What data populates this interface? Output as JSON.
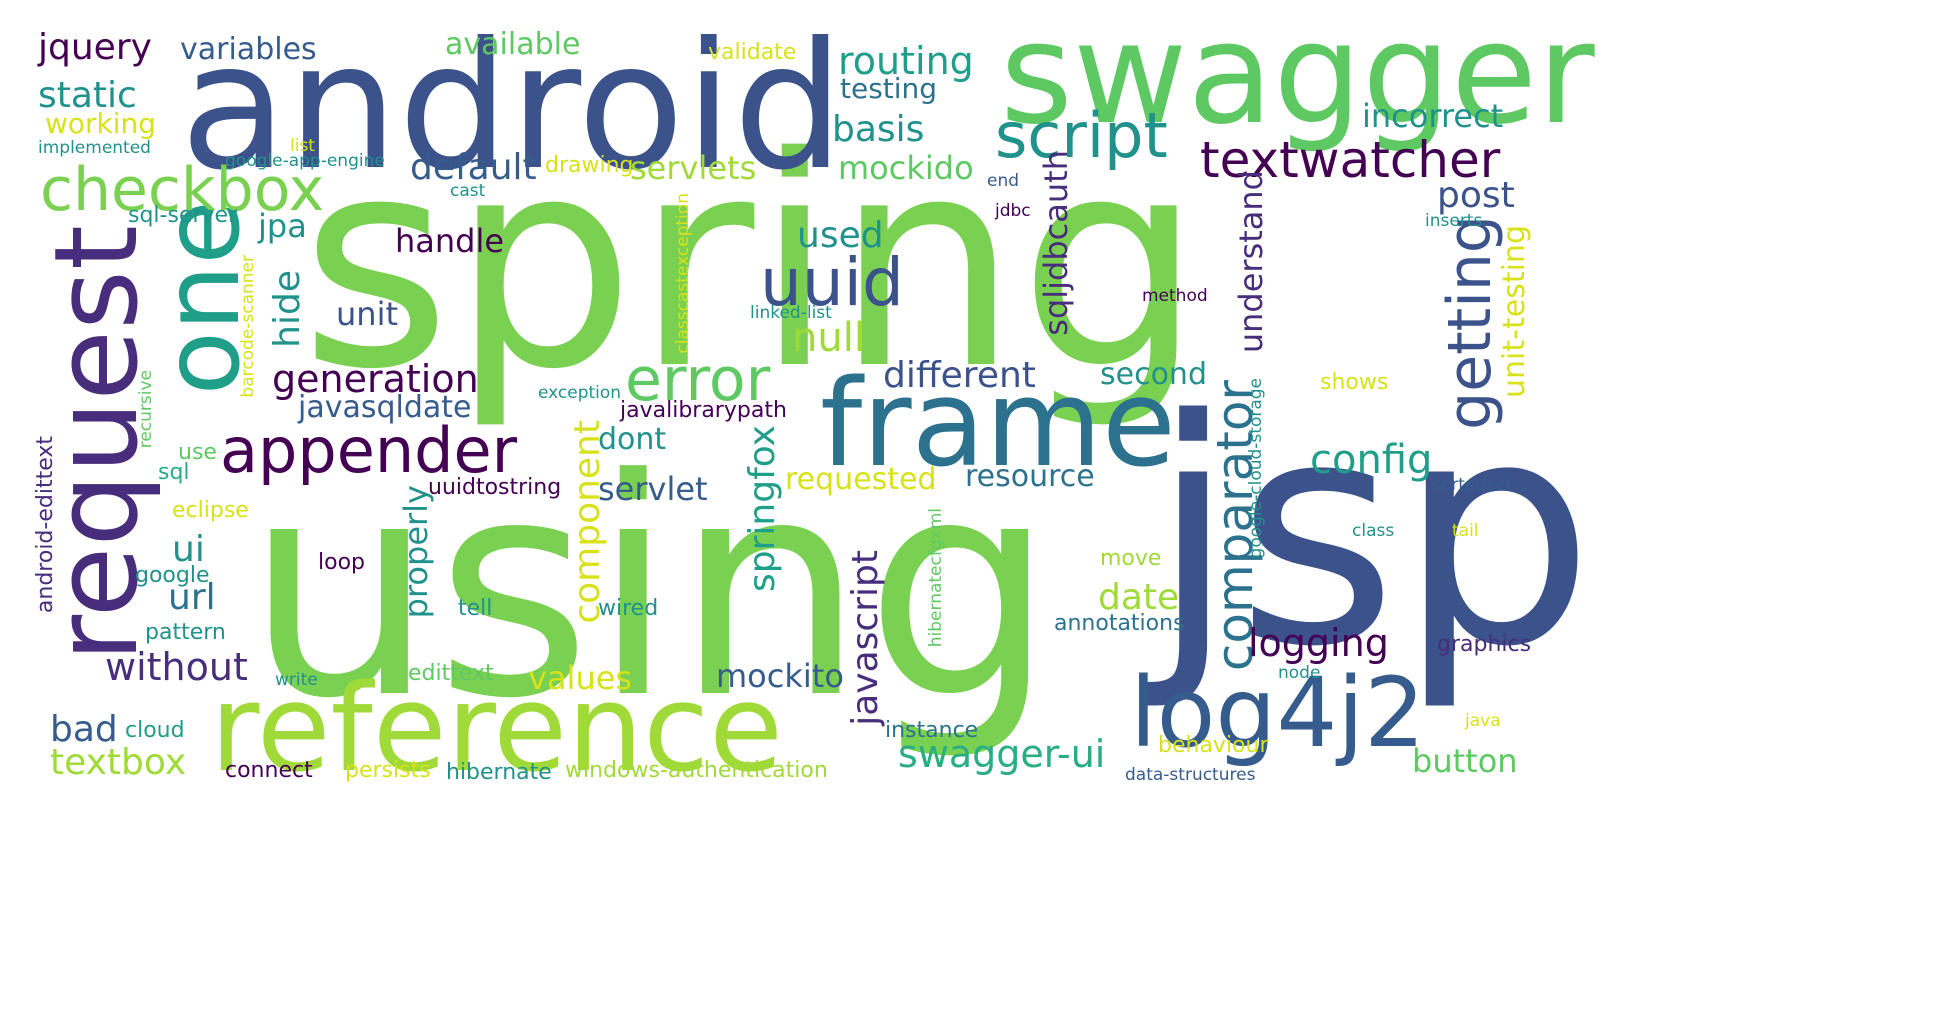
{
  "palette": {
    "c1": "#440154",
    "c2": "#3b528b",
    "c3": "#2c728e",
    "c4": "#21918c",
    "c5": "#28ae80",
    "c6": "#5ec962",
    "c7": "#a0da39",
    "c8": "#d8e219",
    "c9": "#472d7b",
    "c10": "#365c8d",
    "c11": "#1f9e89",
    "c12": "#7ad151"
  },
  "words": {
    "spring": "spring",
    "using": "using",
    "jsp": "jsp",
    "android": "android",
    "swagger": "swagger",
    "reference": "reference",
    "frame": "frame",
    "request": "request",
    "one": "one",
    "log4j2": "log4j2",
    "script": "script",
    "appender": "appender",
    "checkbox": "checkbox",
    "error": "error",
    "getting": "getting",
    "textwatcher": "textwatcher",
    "uuid": "uuid",
    "comparator": "comparator",
    "jquery": "jquery",
    "variables": "variables",
    "available": "available",
    "validate": "validate",
    "routing": "routing",
    "testing": "testing",
    "static": "static",
    "working": "working",
    "list": "list",
    "implemented": "implemented",
    "basis": "basis",
    "incorrect": "incorrect",
    "google_app_engine": "google-app-engine",
    "default": "default",
    "drawing": "drawing",
    "servlets": "servlets",
    "mockido": "mockido",
    "cast": "cast",
    "end": "end",
    "post": "post",
    "sql_server": "sql-server",
    "jpa": "jpa",
    "classcastexception": "classcastexception",
    "jdbc": "jdbc",
    "sqljdbcauth": "sqljdbcauth",
    "understand": "understand",
    "inserts": "inserts",
    "handle": "handle",
    "used": "used",
    "unit_testing": "unit-testing",
    "hide": "hide",
    "barcode_scanner": "barcode-scanner",
    "unit": "unit",
    "linked_list": "linked-list",
    "method": "method",
    "null": "null",
    "generation": "generation",
    "different": "different",
    "second": "second",
    "shows": "shows",
    "recursive": "recursive",
    "javasqldate": "javasqldate",
    "exception": "exception",
    "javalibrarypath": "javalibrarypath",
    "google_cloud_storage": "google-cloud-storage",
    "android_edittext": "android-edittext",
    "dont": "dont",
    "use": "use",
    "sql": "sql",
    "config": "config",
    "resource": "resource",
    "requested": "requested",
    "uuidtostring": "uuidtostring",
    "servlet": "servlet",
    "sortedset": "sortedset",
    "eclipse": "eclipse",
    "component": "component",
    "springfox": "springfox",
    "ui": "ui",
    "properly": "properly",
    "hibernatecfgxml": "hibernatecfgxml",
    "class": "class",
    "tail": "tail",
    "loop": "loop",
    "google": "google",
    "move": "move",
    "url": "url",
    "date": "date",
    "tell": "tell",
    "wired": "wired",
    "javascript": "javascript",
    "pattern": "pattern",
    "annotations": "annotations",
    "logging": "logging",
    "graphics": "graphics",
    "without": "without",
    "mockito": "mockito",
    "write": "write",
    "edittext": "edittext",
    "values": "values",
    "node": "node",
    "bad": "bad",
    "cloud": "cloud",
    "java": "java",
    "instance": "instance",
    "swagger_ui": "swagger-ui",
    "textbox": "textbox",
    "behaviour": "behaviour",
    "button": "button",
    "connect": "connect",
    "persists": "persists",
    "hibernate": "hibernate",
    "windows_authentication": "windows-authentication",
    "data_structures": "data-structures"
  }
}
